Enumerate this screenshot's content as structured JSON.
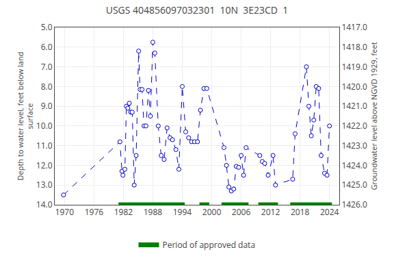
{
  "chart_data": {
    "type": "line",
    "title": "USGS 404856097032301  10N  3E23CD  1",
    "y_label": "Depth to water level, feet below land\nsurface",
    "y2_label": "Groundwater level above NGVD 1929, feet",
    "x": [
      1969.8,
      1981.3,
      1981.7,
      1981.9,
      1982.3,
      1982.6,
      1982.9,
      1983.2,
      1983.5,
      1983.8,
      1984.2,
      1984.6,
      1985.1,
      1985.4,
      1985.8,
      1986.2,
      1986.6,
      1987.1,
      1987.5,
      1988.0,
      1988.4,
      1989.1,
      1989.7,
      1990.3,
      1990.9,
      1991.5,
      1992.0,
      1992.7,
      1993.3,
      1994.0,
      1994.7,
      1995.3,
      1995.9,
      1996.5,
      1997.1,
      1997.7,
      1998.4,
      1999.0,
      2002.5,
      2003.0,
      2003.5,
      2004.0,
      2004.5,
      2005.0,
      2005.5,
      2006.0,
      2006.5,
      2007.0,
      2009.8,
      2010.3,
      2010.8,
      2011.5,
      2012.5,
      2013.0,
      2016.5,
      2017.0,
      2019.3,
      2019.8,
      2020.3,
      2020.8,
      2021.3,
      2021.8,
      2022.3,
      2023.0,
      2023.5,
      2024.0
    ],
    "series": [
      {
        "color": "#0000cc",
        "line_style": "dashed",
        "marker": "circle",
        "values": [
          13.5,
          10.8,
          12.3,
          12.5,
          12.2,
          9.0,
          9.1,
          8.85,
          9.3,
          9.3,
          13.0,
          11.5,
          6.2,
          8.15,
          8.15,
          10.0,
          10.0,
          8.2,
          9.5,
          5.75,
          6.3,
          10.0,
          11.5,
          11.7,
          10.1,
          10.6,
          10.7,
          11.2,
          12.2,
          8.0,
          10.3,
          10.6,
          10.8,
          10.8,
          10.8,
          9.2,
          8.1,
          8.1,
          11.1,
          12.0,
          13.1,
          13.3,
          13.2,
          12.05,
          12.1,
          11.5,
          12.5,
          11.1,
          11.5,
          11.8,
          11.9,
          12.5,
          11.5,
          13.0,
          12.7,
          10.4,
          7.0,
          9.0,
          10.5,
          9.7,
          8.0,
          8.1,
          11.5,
          12.4,
          12.5,
          10.0
        ]
      },
      {
        "name": "Period of approved data",
        "type": "range",
        "color": "#008000",
        "y": 14.0,
        "periods": [
          [
            1981.0,
            1994.5
          ],
          [
            1997.5,
            1999.5
          ],
          [
            2002.0,
            2007.5
          ],
          [
            2009.5,
            2013.5
          ],
          [
            2016.0,
            2024.5
          ]
        ]
      }
    ],
    "xlim": [
      1968,
      2026
    ],
    "xticks": [
      1970,
      1976,
      1982,
      1988,
      1994,
      2000,
      2006,
      2012,
      2018,
      2024
    ],
    "ylim": [
      14.0,
      5.0
    ],
    "yticks": [
      {
        "value": 5,
        "label": "5.0"
      },
      {
        "value": 6,
        "label": "6.0"
      },
      {
        "value": 7,
        "label": "7.0"
      },
      {
        "value": 8,
        "label": "8.0"
      },
      {
        "value": 9,
        "label": "9.0"
      },
      {
        "value": 10,
        "label": "10.0"
      },
      {
        "value": 11,
        "label": "11.0"
      },
      {
        "value": 12,
        "label": "12.0"
      },
      {
        "value": 13,
        "label": "13.0"
      },
      {
        "value": 14,
        "label": "14.0"
      }
    ],
    "y2lim": [
      1426.0,
      1417.0
    ],
    "y2ticks": [
      {
        "value": 1426,
        "label": "1426.0"
      },
      {
        "value": 1425,
        "label": "1425.0"
      },
      {
        "value": 1424,
        "label": "1424.0"
      },
      {
        "value": 1423,
        "label": "1423.0"
      },
      {
        "value": 1422,
        "label": "1422.0"
      },
      {
        "value": 1421,
        "label": "1421.0"
      },
      {
        "value": 1420,
        "label": "1420.0"
      },
      {
        "value": 1419,
        "label": "1419.0"
      },
      {
        "value": 1418,
        "label": "1418.0"
      },
      {
        "value": 1417,
        "label": "1417.0"
      }
    ],
    "grid": true,
    "legend": "bottom"
  }
}
